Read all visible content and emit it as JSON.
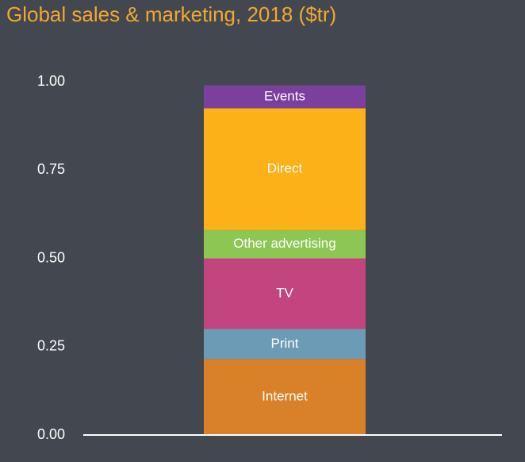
{
  "chart_data": {
    "type": "stacked-bar",
    "title": "Global sales & marketing, 2018 ($tr)",
    "categories": [
      null
    ],
    "series": [
      {
        "name": "Internet",
        "color": "#d98128",
        "values": [
          0.215
        ]
      },
      {
        "name": "Print",
        "color": "#6c9cb5",
        "values": [
          0.085
        ]
      },
      {
        "name": "TV",
        "color": "#c2457f",
        "values": [
          0.2
        ]
      },
      {
        "name": "Other advertising",
        "color": "#8dc653",
        "values": [
          0.08
        ]
      },
      {
        "name": "Direct",
        "color": "#fbb117",
        "values": [
          0.345
        ]
      },
      {
        "name": "Events",
        "color": "#7b3f9e",
        "values": [
          0.065
        ]
      }
    ],
    "ylim": [
      0,
      1
    ],
    "yticks": [
      {
        "value": 0,
        "label": "0.00"
      },
      {
        "value": 0.25,
        "label": "0.25"
      },
      {
        "value": 0.5,
        "label": "0.50"
      },
      {
        "value": 0.75,
        "label": "0.75"
      },
      {
        "value": 1,
        "label": "1.00"
      }
    ],
    "grid": false
  }
}
